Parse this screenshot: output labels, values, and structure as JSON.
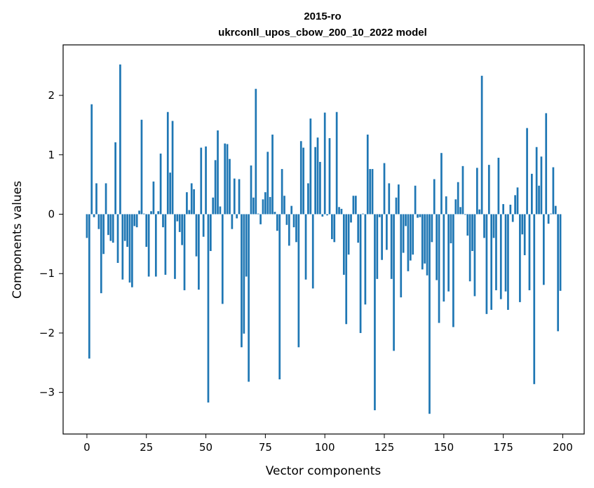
{
  "chart_data": {
    "type": "bar",
    "title_line1": "2015-ro",
    "title_line2": "ukrconll_upos_cbow_200_10_2022 model",
    "xlabel": "Vector components",
    "ylabel": "Components values",
    "xlim": [
      -10,
      209
    ],
    "ylim": [
      -3.7,
      2.85
    ],
    "xticks": [
      0,
      25,
      50,
      75,
      100,
      125,
      150,
      175,
      200
    ],
    "yticks": [
      -3,
      -2,
      -1,
      0,
      1,
      2
    ],
    "ytick_labels": [
      "−3",
      "−2",
      "−1",
      "0",
      "1",
      "2"
    ],
    "grid": false,
    "bar_color": "#1f77b4",
    "values": [
      -0.4,
      -2.43,
      1.85,
      -0.05,
      0.52,
      -0.25,
      -1.33,
      -0.67,
      0.52,
      -0.35,
      -0.45,
      -0.48,
      1.21,
      -0.82,
      2.52,
      -1.1,
      -0.45,
      -0.55,
      -1.15,
      -1.23,
      -0.2,
      -0.22,
      0.06,
      1.59,
      0.01,
      -0.55,
      -1.05,
      0.05,
      0.55,
      -1.05,
      0.05,
      1.02,
      -0.22,
      -1.02,
      1.72,
      0.7,
      1.57,
      -1.09,
      -0.12,
      -0.3,
      -0.52,
      -1.28,
      0.37,
      0.07,
      0.52,
      0.42,
      -0.71,
      -1.27,
      1.12,
      -0.38,
      1.14,
      -3.17,
      -0.62,
      0.28,
      0.91,
      1.41,
      0.13,
      -1.51,
      1.19,
      1.18,
      0.93,
      -0.25,
      0.6,
      -0.07,
      0.59,
      -2.24,
      -2.01,
      -1.05,
      -2.82,
      0.82,
      0.28,
      2.11,
      0.01,
      -0.17,
      0.25,
      0.37,
      1.05,
      0.29,
      1.34,
      0.04,
      -0.28,
      -2.78,
      0.76,
      0.31,
      -0.18,
      -0.53,
      0.14,
      -0.22,
      -0.47,
      -2.24,
      1.23,
      1.12,
      -1.1,
      0.52,
      1.61,
      -1.25,
      1.13,
      1.29,
      0.88,
      -0.04,
      1.71,
      -0.02,
      1.28,
      -0.42,
      -0.47,
      1.72,
      0.12,
      0.09,
      -1.02,
      -1.85,
      -0.68,
      -0.14,
      0.31,
      0.31,
      -0.48,
      -2.0,
      0.01,
      -1.52,
      1.34,
      0.76,
      0.76,
      -3.3,
      -1.09,
      -0.05,
      -0.77,
      0.86,
      -0.6,
      0.52,
      -1.09,
      -2.3,
      0.28,
      0.5,
      -1.4,
      -0.65,
      -0.2,
      -0.96,
      -0.78,
      -0.68,
      0.48,
      -0.06,
      -0.05,
      -0.93,
      -0.83,
      -1.03,
      -3.36,
      -0.47,
      0.59,
      -1.11,
      -1.83,
      1.03,
      -1.47,
      0.3,
      -1.3,
      -0.49,
      -1.9,
      0.25,
      0.54,
      0.12,
      0.81,
      -0.01,
      -0.36,
      -1.13,
      -0.62,
      -1.38,
      0.78,
      0.08,
      2.33,
      -0.4,
      -1.68,
      0.83,
      -1.61,
      -0.4,
      -1.28,
      0.95,
      -1.43,
      0.17,
      -1.3,
      -1.61,
      0.16,
      -0.13,
      0.32,
      0.45,
      -1.48,
      -0.34,
      -0.69,
      1.45,
      -1.28,
      0.68,
      -2.86,
      1.13,
      0.48,
      0.97,
      -1.19,
      1.7,
      -0.16,
      0.01,
      0.79,
      0.14,
      -1.97,
      -1.29
    ]
  }
}
